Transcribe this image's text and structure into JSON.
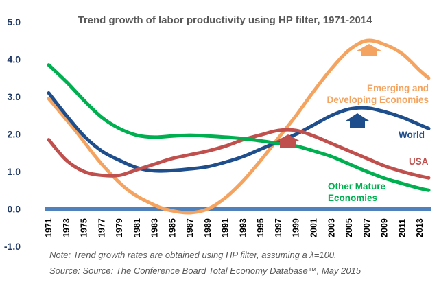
{
  "chart_data": {
    "type": "line",
    "title": "Trend growth of labor productivity using HP filter, 1971-2014",
    "xlabel": "",
    "ylabel": "",
    "ylim": [
      -1.0,
      5.0
    ],
    "xlim": [
      1971,
      2014
    ],
    "yticks": [
      "5.0",
      "4.0",
      "3.0",
      "2.0",
      "1.0",
      "0.0",
      "-1.0"
    ],
    "xticks": [
      "1971",
      "1973",
      "1975",
      "1977",
      "1979",
      "1981",
      "1983",
      "1985",
      "1987",
      "1989",
      "1991",
      "1993",
      "1995",
      "1997",
      "1999",
      "2001",
      "2003",
      "2005",
      "2007",
      "2009",
      "2011",
      "2013"
    ],
    "series": [
      {
        "name": "Emerging and Developing Economies",
        "label_lines": [
          "Emerging and",
          "Developing Economies"
        ],
        "color": "#f4a460",
        "x": [
          1971,
          1974,
          1977,
          1980,
          1983,
          1985,
          1987,
          1989,
          1991,
          1993,
          1995,
          1997,
          1999,
          2001,
          2003,
          2005,
          2007,
          2009,
          2011,
          2013,
          2014
        ],
        "values": [
          2.95,
          2.1,
          1.2,
          0.5,
          0.1,
          -0.05,
          -0.1,
          0.0,
          0.3,
          0.75,
          1.3,
          1.9,
          2.5,
          3.15,
          3.75,
          4.25,
          4.5,
          4.4,
          4.15,
          3.7,
          3.5
        ]
      },
      {
        "name": "World",
        "label_lines": [
          "World"
        ],
        "color": "#1f4e8c",
        "x": [
          1971,
          1973,
          1975,
          1977,
          1979,
          1981,
          1983,
          1985,
          1987,
          1989,
          1991,
          1993,
          1995,
          1997,
          1999,
          2001,
          2003,
          2005,
          2007,
          2009,
          2011,
          2013,
          2014
        ],
        "values": [
          3.1,
          2.5,
          1.95,
          1.55,
          1.3,
          1.1,
          1.02,
          1.03,
          1.07,
          1.13,
          1.25,
          1.4,
          1.6,
          1.8,
          2.0,
          2.25,
          2.5,
          2.67,
          2.7,
          2.6,
          2.45,
          2.25,
          2.15
        ]
      },
      {
        "name": "USA",
        "label_lines": [
          "USA"
        ],
        "color": "#c0504d",
        "x": [
          1971,
          1973,
          1975,
          1977,
          1979,
          1981,
          1983,
          1985,
          1987,
          1989,
          1991,
          1993,
          1995,
          1997,
          1999,
          2001,
          2003,
          2005,
          2007,
          2009,
          2011,
          2013,
          2014
        ],
        "values": [
          1.85,
          1.3,
          1.0,
          0.9,
          0.9,
          1.05,
          1.2,
          1.35,
          1.45,
          1.55,
          1.68,
          1.85,
          1.98,
          2.1,
          2.1,
          1.95,
          1.75,
          1.55,
          1.35,
          1.15,
          1.0,
          0.88,
          0.83
        ]
      },
      {
        "name": "Other Mature Economies",
        "label_lines": [
          "Other Mature",
          "Economies"
        ],
        "color": "#00b050",
        "x": [
          1971,
          1973,
          1975,
          1977,
          1979,
          1981,
          1983,
          1985,
          1987,
          1989,
          1991,
          1993,
          1995,
          1997,
          1999,
          2001,
          2003,
          2005,
          2007,
          2009,
          2011,
          2013,
          2014
        ],
        "values": [
          3.85,
          3.4,
          2.9,
          2.45,
          2.15,
          1.97,
          1.92,
          1.95,
          1.97,
          1.95,
          1.92,
          1.88,
          1.82,
          1.75,
          1.68,
          1.55,
          1.4,
          1.2,
          1.0,
          0.82,
          0.68,
          0.55,
          0.5
        ]
      }
    ],
    "annotations": {
      "note": "Note: Trend growth rates are obtained using HP filter, assuming a λ=100.",
      "source": "Source: Source: The Conference Board Total Economy Database™, May 2015"
    }
  }
}
